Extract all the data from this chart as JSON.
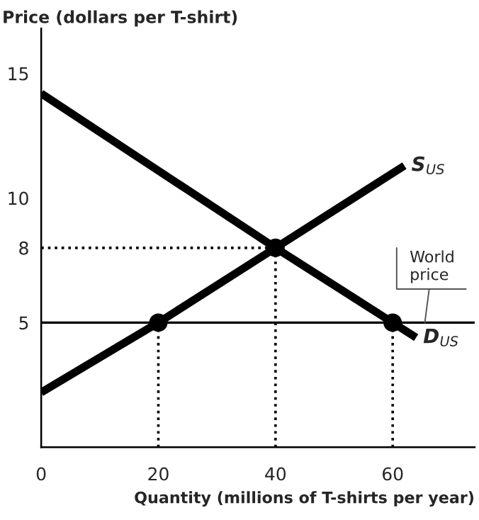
{
  "chart_data": {
    "type": "line",
    "xlabel": "Quantity (millions of T-shirts per year)",
    "ylabel": "Price (dollars per T-shirt)",
    "xlim": [
      0,
      74
    ],
    "ylim": [
      0,
      16.8
    ],
    "xticks": [
      0,
      20,
      40,
      60
    ],
    "yticks": [
      5,
      8,
      10,
      15
    ],
    "grid": false,
    "legend": false,
    "series": [
      {
        "name": "S$_{US}$",
        "color": "#000000",
        "x": [
          0,
          20,
          40,
          62
        ],
        "values": [
          2.2,
          5,
          8,
          11.3
        ],
        "line_style": "solid"
      },
      {
        "name": "D$_{US}$",
        "color": "#000000",
        "x": [
          0,
          40,
          60,
          64
        ],
        "values": [
          14.2,
          8,
          5,
          4.4
        ],
        "line_style": "solid"
      },
      {
        "type": "line",
        "color": "#000000",
        "x": [
          20,
          20
        ],
        "values": [
          0,
          5
        ],
        "line_style": "dotted"
      },
      {
        "type": "line",
        "color": "#000000",
        "x": [
          40,
          40
        ],
        "values": [
          0,
          8
        ],
        "line_style": "dotted"
      },
      {
        "type": "line",
        "color": "#000000",
        "x": [
          60,
          60
        ],
        "values": [
          0,
          5
        ],
        "line_style": "dotted"
      },
      {
        "type": "line",
        "color": "#000000",
        "x": [
          0,
          40
        ],
        "values": [
          8,
          8
        ],
        "line_style": "dotted"
      },
      {
        "type": "scatter",
        "color": "#000000",
        "x": [
          20,
          40,
          60
        ],
        "values": [
          5,
          8,
          5
        ],
        "marker": "circle"
      }
    ],
    "ref_lines": [
      {
        "axis": "y",
        "value": 5,
        "label": "World price",
        "color": "#000000",
        "line_style": "solid"
      }
    ]
  }
}
